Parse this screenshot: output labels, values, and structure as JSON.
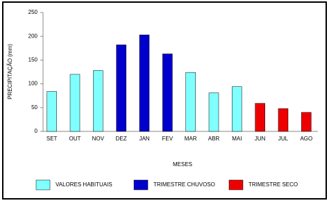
{
  "chart_data": {
    "type": "bar",
    "y_label": "PRECIPITAÇÃO (mm)",
    "x_label": "MESES",
    "categories": [
      "SET",
      "OUT",
      "NOV",
      "DEZ",
      "JAN",
      "FEV",
      "MAR",
      "ABR",
      "MAI",
      "JUN",
      "JUL",
      "AGO"
    ],
    "series": [
      {
        "name": "VALORES HABITUAIS",
        "color": "#80ffff",
        "values": [
          84,
          120,
          128,
          null,
          null,
          null,
          124,
          81,
          94,
          null,
          null,
          null
        ]
      },
      {
        "name": "TRIMESTRE CHUVOSO",
        "color": "#0000cc",
        "values": [
          null,
          null,
          null,
          182,
          203,
          163,
          null,
          null,
          null,
          null,
          null,
          null
        ]
      },
      {
        "name": "TRIMESTRE SECO",
        "color": "#ee0000",
        "values": [
          null,
          null,
          null,
          null,
          null,
          null,
          null,
          null,
          null,
          59,
          48,
          40
        ]
      }
    ],
    "ylim": [
      0,
      250
    ],
    "yticks": [
      0,
      50,
      100,
      150,
      200,
      250
    ],
    "grid": false,
    "legend": "bottom"
  }
}
